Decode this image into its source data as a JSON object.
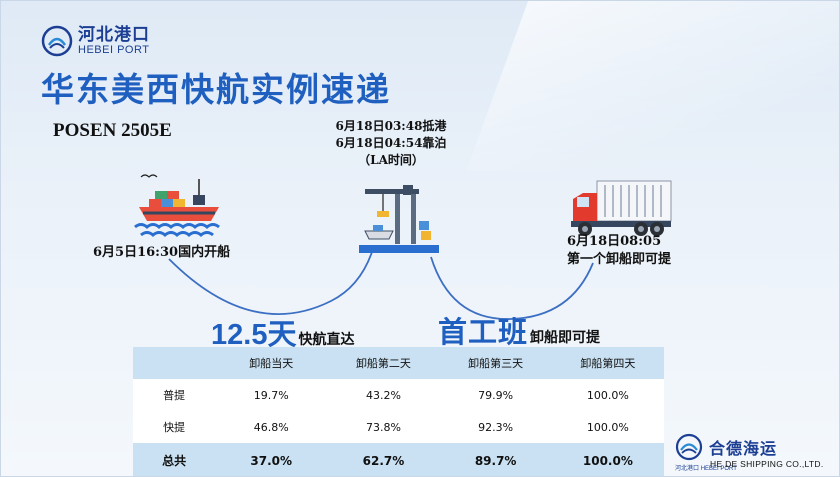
{
  "logo": {
    "cn": "河北港口",
    "en": "HEBEI PORT"
  },
  "title": "华东美西快航实例速递",
  "vessel": "POSEN 2505E",
  "arrival": {
    "line1": "6月18日03:48抵港",
    "line2": "6月18日04:54靠泊",
    "line3": "（LA时间）"
  },
  "departure": "6月5日16:30国内开船",
  "pickup": {
    "line1": "6月18日08:05",
    "line2": "第一个卸船即可提"
  },
  "highlight_fast": {
    "number": "12.5",
    "unit": "天",
    "tail": "快航直达"
  },
  "highlight_first": {
    "big": "首工班",
    "tail": "卸船即可提"
  },
  "table": {
    "headers": [
      "",
      "卸船当天",
      "卸船第二天",
      "卸船第三天",
      "卸船第四天"
    ],
    "rows": [
      [
        "普提",
        "19.7%",
        "43.2%",
        "79.9%",
        "100.0%"
      ],
      [
        "快提",
        "46.8%",
        "73.8%",
        "92.3%",
        "100.0%"
      ]
    ],
    "total": [
      "总共",
      "37.0%",
      "62.7%",
      "89.7%",
      "100.0%"
    ]
  },
  "company_logo": {
    "cn": "合德海运",
    "sub": "河北港口",
    "sub_en": "HEBEI PORT",
    "en": "HE DE SHIPPING CO.,LTD."
  },
  "colors": {
    "title_blue": "#1f5fbf",
    "logo_blue": "#1c3f94",
    "table_header": "#c9e1f2",
    "arc_blue": "#3c6fc4"
  },
  "icons": [
    "hebei-port-logo-icon",
    "container-ship-icon",
    "port-crane-icon",
    "cargo-truck-icon",
    "hede-shipping-logo-icon"
  ]
}
